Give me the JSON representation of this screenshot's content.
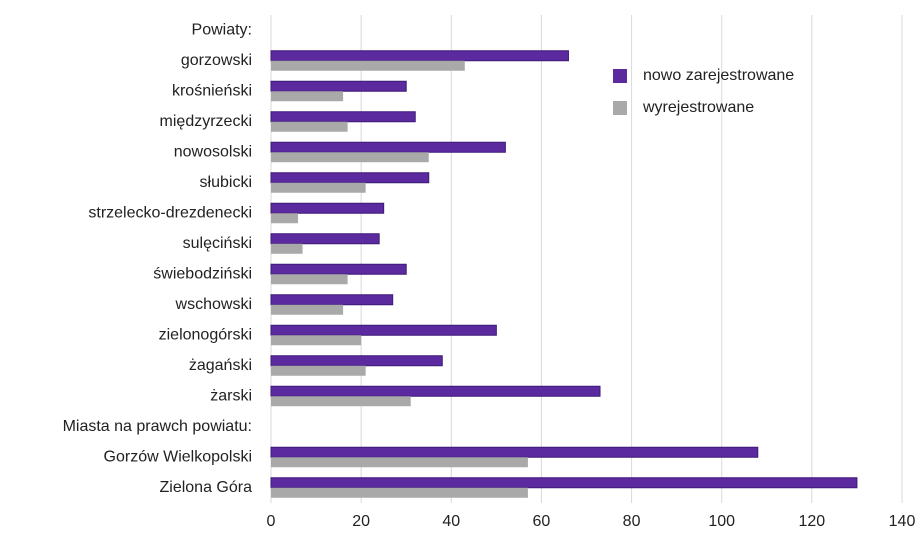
{
  "chart_data": {
    "type": "hbar",
    "categories": [
      "Powiaty:",
      "gorzowski",
      "krośnieński",
      "międzyrzecki",
      "nowosolski",
      "słubicki",
      "strzelecko-drezdenecki",
      "sulęciński",
      "świebodziński",
      "wschowski",
      "zielonogórski",
      "żagański",
      "żarski",
      "Miasta na prawch powiatu:",
      "Gorzów Wielkopolski",
      "Zielona Góra"
    ],
    "series": [
      {
        "name": "nowo zarejestrowane",
        "color": "#5b2a9e",
        "values": [
          null,
          66,
          30,
          32,
          52,
          35,
          25,
          24,
          30,
          27,
          50,
          38,
          73,
          null,
          108,
          130
        ]
      },
      {
        "name": "wyrejestrowane",
        "color": "#a9a9a9",
        "values": [
          null,
          43,
          16,
          17,
          35,
          21,
          6,
          7,
          17,
          16,
          20,
          21,
          31,
          null,
          57,
          57
        ]
      }
    ],
    "xlim": [
      0,
      140
    ],
    "xticks": [
      0,
      20,
      40,
      60,
      80,
      100,
      120,
      140
    ],
    "grid": true,
    "legend": "upper right"
  }
}
